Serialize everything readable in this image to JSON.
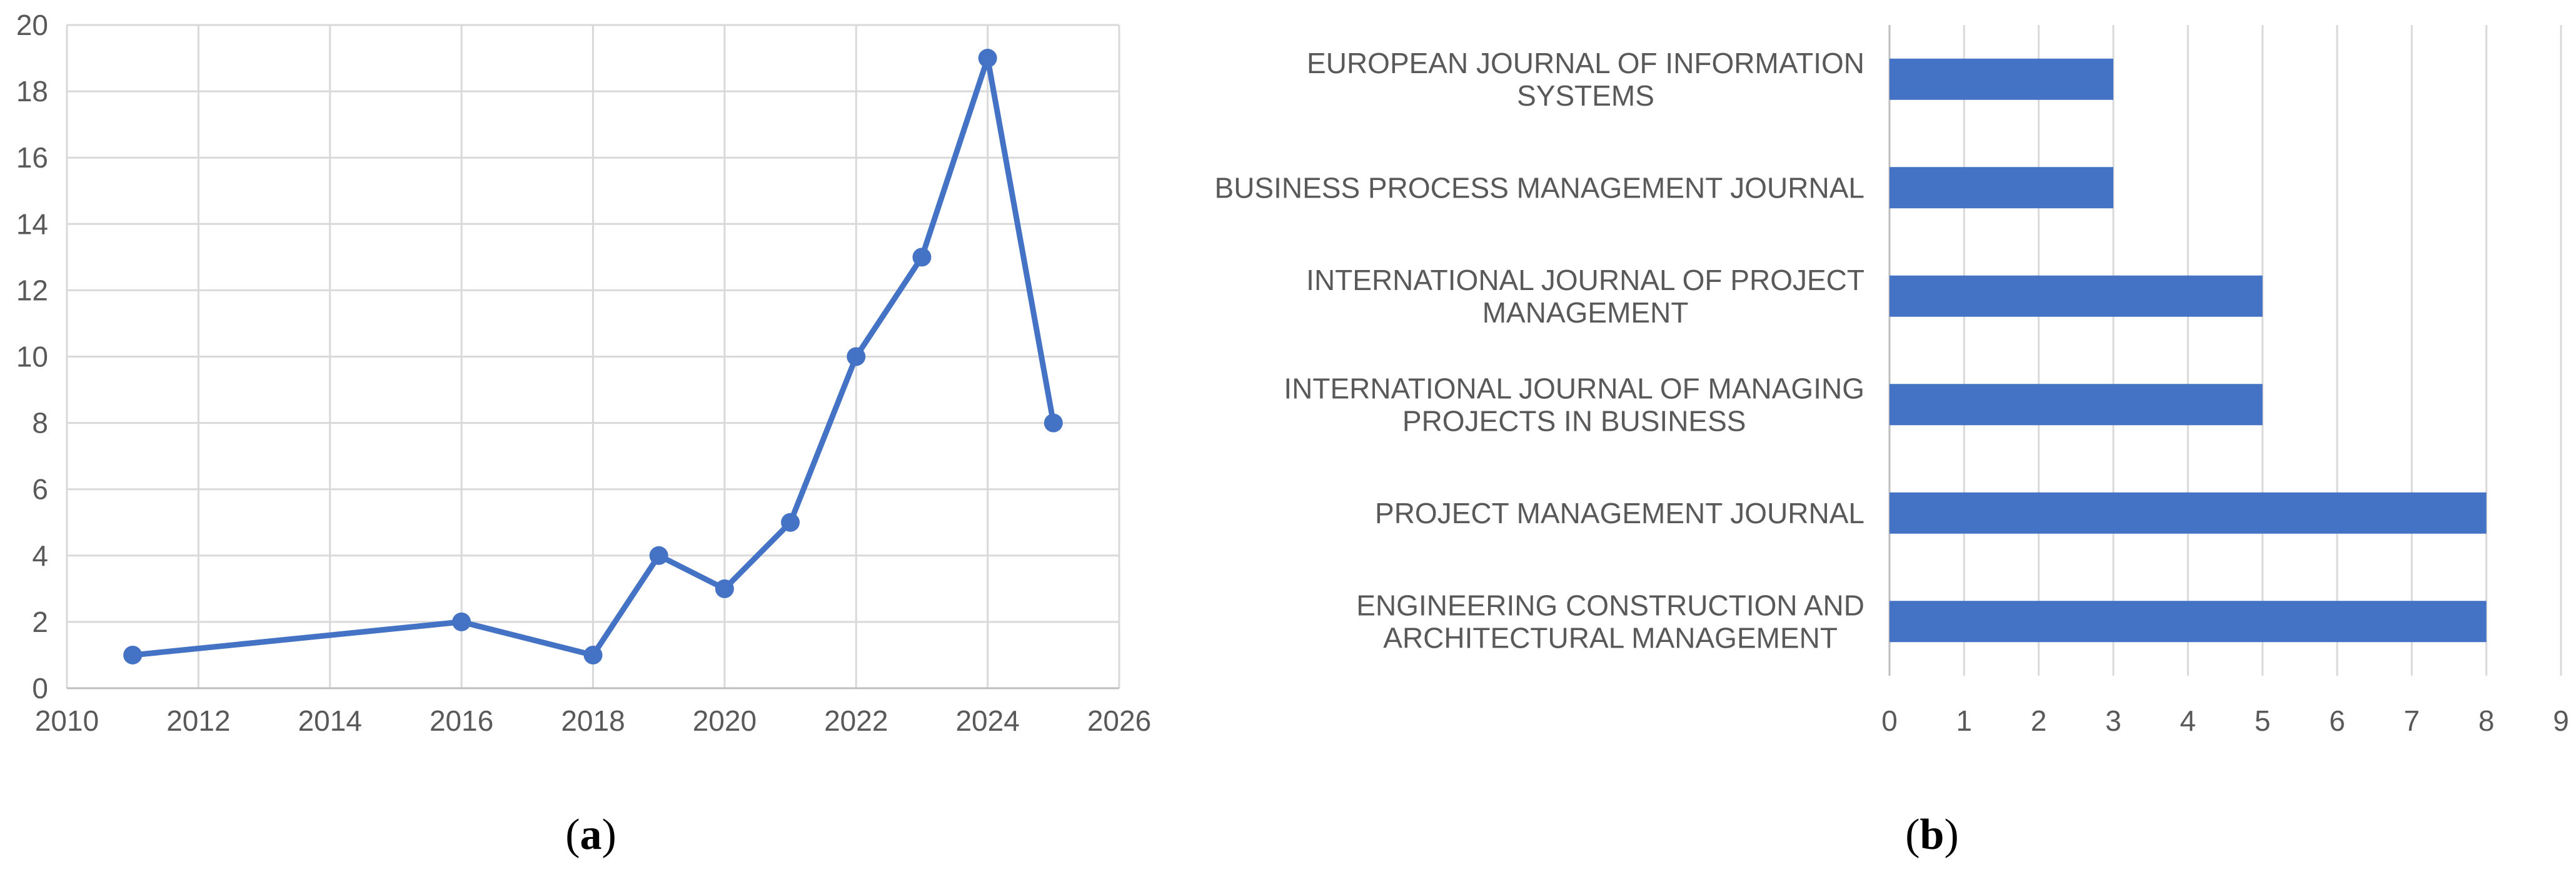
{
  "chart_data": [
    {
      "type": "line",
      "panel_label": "a",
      "x": [
        2011,
        2016,
        2018,
        2019,
        2020,
        2021,
        2022,
        2023,
        2024,
        2025
      ],
      "series": [
        {
          "values": [
            1,
            2,
            1,
            4,
            3,
            5,
            10,
            13,
            19,
            8
          ]
        }
      ],
      "xlim": [
        2010,
        2026
      ],
      "ylim": [
        0,
        20
      ],
      "xticks": [
        "2010",
        "2012",
        "2014",
        "2016",
        "2018",
        "2020",
        "2022",
        "2024",
        "2026"
      ],
      "yticks": [
        "0",
        "2",
        "4",
        "6",
        "8",
        "10",
        "12",
        "14",
        "16",
        "18",
        "20"
      ],
      "grid": true,
      "color": "#4472C4"
    },
    {
      "type": "bar",
      "orientation": "horizontal",
      "panel_label": "b",
      "categories": [
        [
          "EUROPEAN JOURNAL OF INFORMATION",
          "SYSTEMS"
        ],
        [
          "BUSINESS PROCESS MANAGEMENT JOURNAL"
        ],
        [
          "INTERNATIONAL JOURNAL OF PROJECT",
          "MANAGEMENT"
        ],
        [
          "INTERNATIONAL JOURNAL OF MANAGING",
          "PROJECTS IN BUSINESS"
        ],
        [
          "PROJECT MANAGEMENT JOURNAL"
        ],
        [
          "ENGINEERING CONSTRUCTION AND",
          "ARCHITECTURAL MANAGEMENT"
        ]
      ],
      "values": [
        3,
        3,
        5,
        5,
        8,
        8
      ],
      "xlim": [
        0,
        9
      ],
      "xticks": [
        "0",
        "1",
        "2",
        "3",
        "4",
        "5",
        "6",
        "7",
        "8",
        "9"
      ],
      "grid": true,
      "color": "#4472C4"
    }
  ]
}
